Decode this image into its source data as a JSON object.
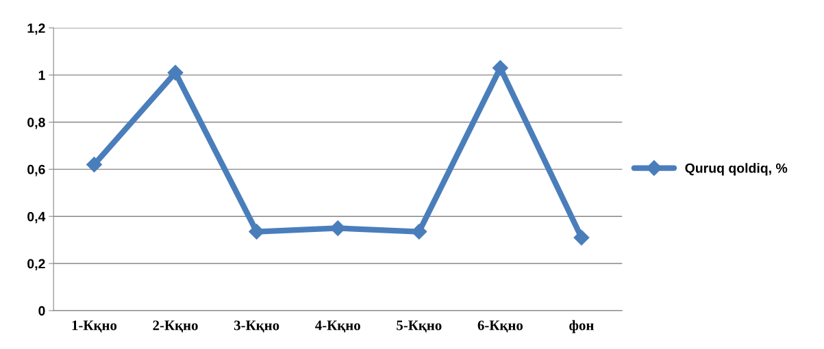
{
  "chart_data": {
    "type": "line",
    "categories": [
      "1-Кқно",
      "2-Кқно",
      "3-Кқно",
      "4-Кқно",
      "5-Кқно",
      "6-Кқно",
      "фон"
    ],
    "series": [
      {
        "name": "Quruq qoldiq, %",
        "color": "#4a7ebb",
        "values": [
          0.62,
          1.01,
          0.335,
          0.35,
          0.335,
          1.03,
          0.31
        ]
      }
    ],
    "ylim": [
      0,
      1.2
    ],
    "yticks": [
      {
        "value": 0,
        "label": "0"
      },
      {
        "value": 0.2,
        "label": "0,2"
      },
      {
        "value": 0.4,
        "label": "0,4"
      },
      {
        "value": 0.6,
        "label": "0,6"
      },
      {
        "value": 0.8,
        "label": "0,8"
      },
      {
        "value": 1,
        "label": "1"
      },
      {
        "value": 1.2,
        "label": "1,2"
      }
    ],
    "grid": "y",
    "legend": "right",
    "marker": "diamond",
    "line_style": "solid"
  }
}
